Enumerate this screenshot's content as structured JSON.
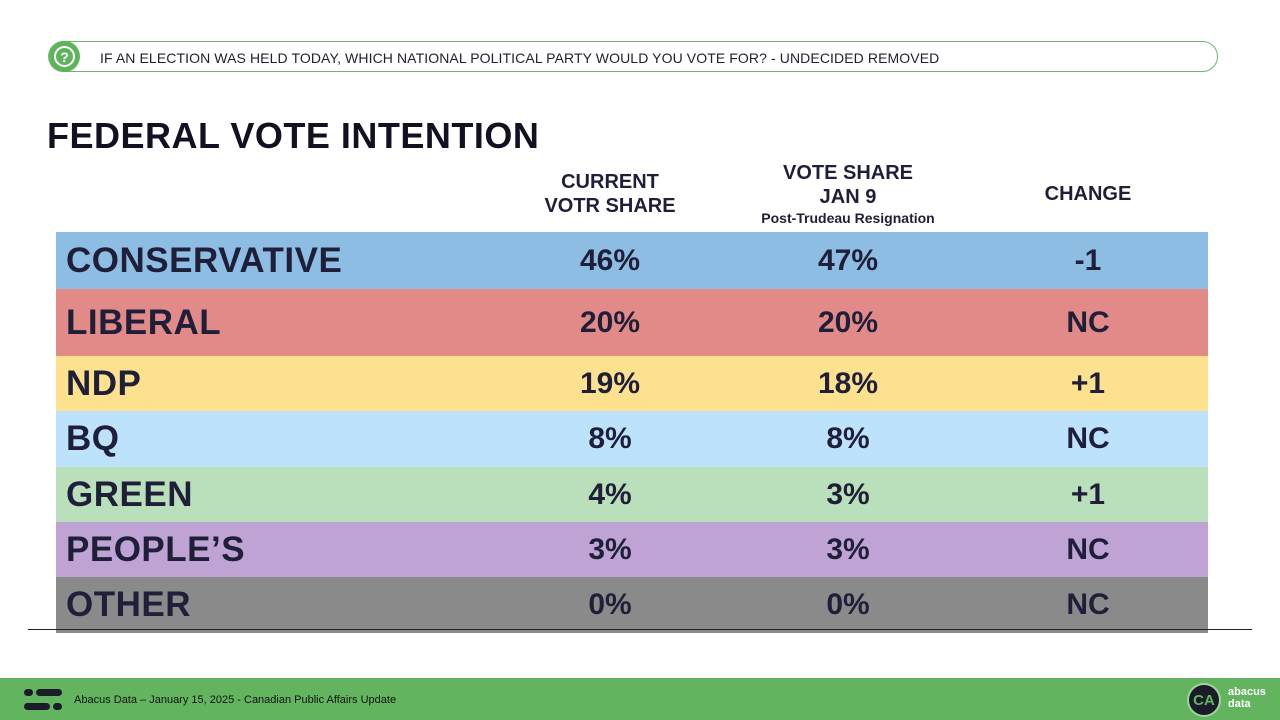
{
  "question": {
    "icon": "question-icon",
    "text": "IF AN ELECTION WAS HELD TODAY, WHICH NATIONAL POLITICAL PARTY WOULD YOU VOTE FOR? - UNDECIDED REMOVED"
  },
  "title": "FEDERAL VOTE INTENTION",
  "columns": {
    "current": [
      "CURRENT",
      "VOTR SHARE"
    ],
    "jan9": [
      "VOTE SHARE",
      "JAN 9"
    ],
    "jan9_sub": "Post-Trudeau Resignation",
    "change": "CHANGE"
  },
  "chart_data": {
    "type": "table",
    "title": "FEDERAL VOTE INTENTION",
    "columns": [
      "CURRENT VOTR SHARE",
      "VOTE SHARE JAN 9 Post-Trudeau Resignation",
      "CHANGE"
    ],
    "rows": [
      {
        "party": "CONSERVATIVE",
        "current": "46%",
        "jan9": "47%",
        "change": "-1",
        "color": "#8ebde4"
      },
      {
        "party": "LIBERAL",
        "current": "20%",
        "jan9": "20%",
        "change": "NC",
        "color": "#e28a87"
      },
      {
        "party": "NDP",
        "current": "19%",
        "jan9": "18%",
        "change": "+1",
        "color": "#fde18e"
      },
      {
        "party": "BQ",
        "current": "8%",
        "jan9": "8%",
        "change": "NC",
        "color": "#bde3fc"
      },
      {
        "party": "GREEN",
        "current": "4%",
        "jan9": "3%",
        "change": "+1",
        "color": "#b9dfbb"
      },
      {
        "party": "PEOPLE’S",
        "current": "3%",
        "jan9": "3%",
        "change": "NC",
        "color": "#bea3d4"
      },
      {
        "party": "OTHER",
        "current": "0%",
        "jan9": "0%",
        "change": "NC",
        "color": "#8a8a8a"
      }
    ]
  },
  "footer": {
    "text": "Abacus Data – January 15, 2025 - Canadian Public Affairs Update",
    "logo_initials": "CA",
    "logo_word": [
      "abacus",
      "data"
    ],
    "accent": "#62b45f"
  }
}
